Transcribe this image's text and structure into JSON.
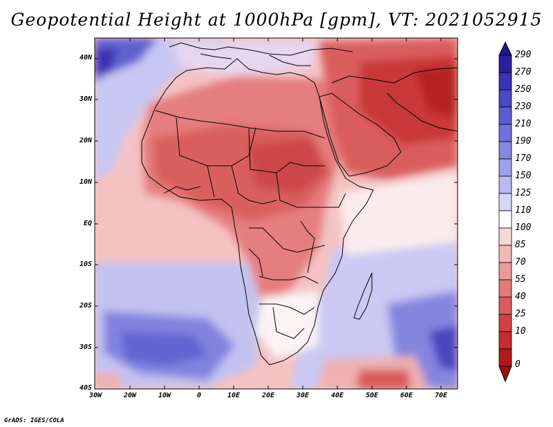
{
  "title": "Geopotential Height at 1000hPa [gpm], VT: 2021052915",
  "credit": "GrADS: IGES/COLA",
  "axes": {
    "lat_labels": [
      "40N",
      "30N",
      "20N",
      "10N",
      "EQ",
      "10S",
      "20S",
      "30S",
      "40S"
    ],
    "lon_labels": [
      "30W",
      "20W",
      "10W",
      "0",
      "10E",
      "20E",
      "30E",
      "40E",
      "50E",
      "60E",
      "70E"
    ]
  },
  "colorbar": {
    "levels": [
      "290",
      "270",
      "250",
      "230",
      "210",
      "190",
      "170",
      "150",
      "125",
      "110",
      "100",
      "85",
      "70",
      "55",
      "40",
      "25",
      "10",
      "0"
    ],
    "colors": [
      "#2a1fa0",
      "#3a33b4",
      "#4b48c3",
      "#5d5dcf",
      "#7171d8",
      "#8787e2",
      "#a0a0ea",
      "#babaf2",
      "#d6d6f8",
      "#ffffff",
      "#f8d7d7",
      "#f2b8b8",
      "#eb9a9a",
      "#e37b7b",
      "#da5d5d",
      "#d04343",
      "#c42e2e",
      "#b01a1a"
    ]
  }
}
